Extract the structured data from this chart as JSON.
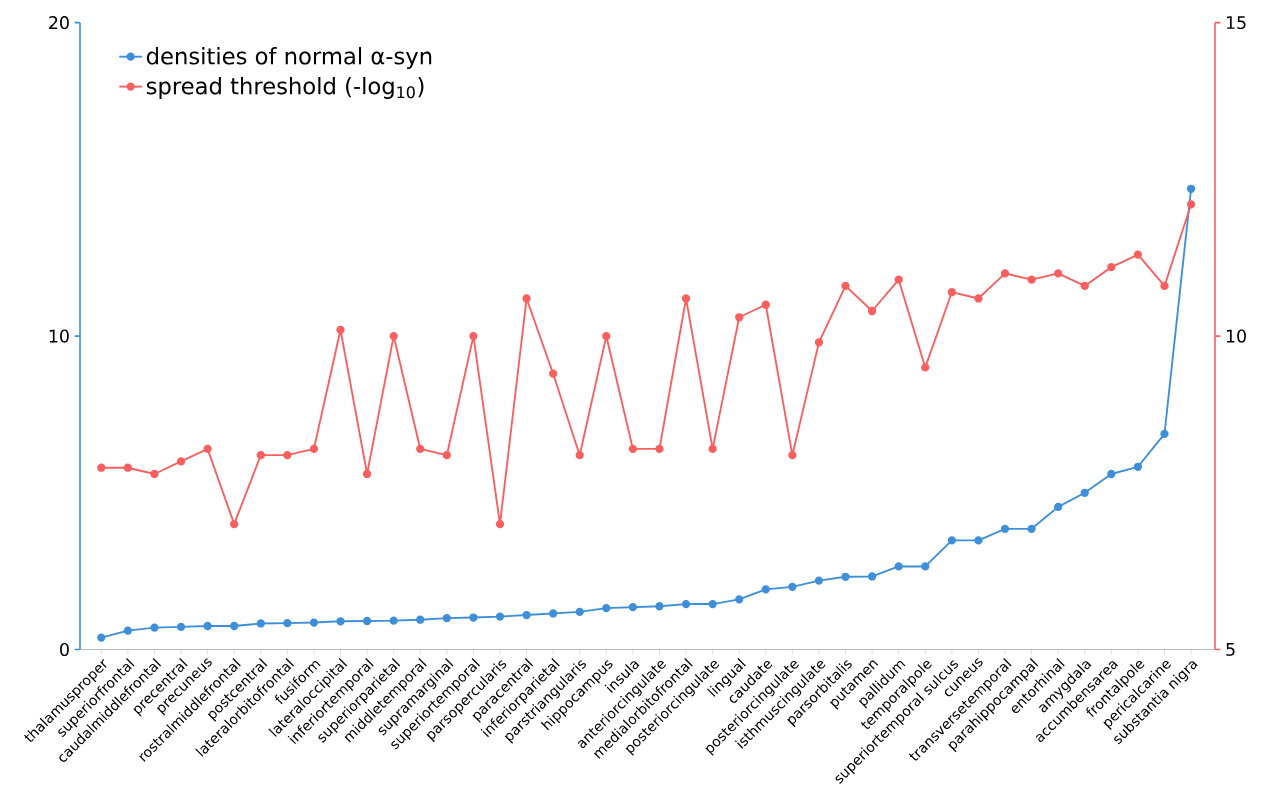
{
  "chart_data": {
    "type": "line",
    "categories": [
      "thalamusproper",
      "superiorfrontal",
      "caudalmiddlefrontal",
      "precentral",
      "precuneus",
      "rostralmiddlefrontal",
      "postcentral",
      "lateralorbitofrontal",
      "fusiform",
      "lateraloccipital",
      "inferiortemporal",
      "superiorparietal",
      "middletemporal",
      "supramarginal",
      "superiortemporal",
      "parsopercularis",
      "paracentral",
      "inferiorparietal",
      "parstriangularis",
      "hippocampus",
      "insula",
      "anteriorcingulate",
      "medialorbitofrontal",
      "posteriorcingulate",
      "lingual",
      "caudate",
      "posteriorcingulate",
      "isthmuscingulate",
      "parsorbitalis",
      "putamen",
      "pallidum",
      "temporalpole",
      "superiortemporal sulcus",
      "cuneus",
      "transversetemporal",
      "parahippocampal",
      "entorhinal",
      "amygdala",
      "accumbensarea",
      "frontalpole",
      "pericalcarine",
      "substantia nigra"
    ],
    "series": [
      {
        "name": "densities of normal α-syn",
        "color": "#3f8fd8",
        "values": [
          0.38,
          0.6,
          0.7,
          0.72,
          0.75,
          0.75,
          0.83,
          0.84,
          0.86,
          0.9,
          0.91,
          0.92,
          0.95,
          1.0,
          1.02,
          1.05,
          1.1,
          1.15,
          1.2,
          1.32,
          1.35,
          1.38,
          1.45,
          1.45,
          1.6,
          1.92,
          2.0,
          2.2,
          2.32,
          2.33,
          2.65,
          2.65,
          3.48,
          3.48,
          3.85,
          3.85,
          4.55,
          5.0,
          5.6,
          5.83,
          6.88,
          14.7
        ]
      },
      {
        "name": "spread threshold (-log$_{10}$)",
        "color": "#f95f5f",
        "axis": "y2",
        "values": [
          7.9,
          7.9,
          7.8,
          8.0,
          8.2,
          7.0,
          8.1,
          8.1,
          8.2,
          10.1,
          7.8,
          10.0,
          8.2,
          8.1,
          10.0,
          7.0,
          10.6,
          9.4,
          8.1,
          10.0,
          8.2,
          8.2,
          10.6,
          8.2,
          10.3,
          10.5,
          8.1,
          9.9,
          10.8,
          10.4,
          10.9,
          9.5,
          10.7,
          10.6,
          11.0,
          10.9,
          11.0,
          10.8,
          11.1,
          11.3,
          10.8,
          12.1
        ]
      }
    ],
    "ylim": [
      0,
      20
    ],
    "yticks": [
      0,
      10,
      20
    ],
    "y2lim": [
      5,
      15
    ],
    "y2ticks": [
      5,
      10,
      15
    ],
    "legend": "top left",
    "marker": "circle",
    "line_style": "solid",
    "grid": false
  }
}
